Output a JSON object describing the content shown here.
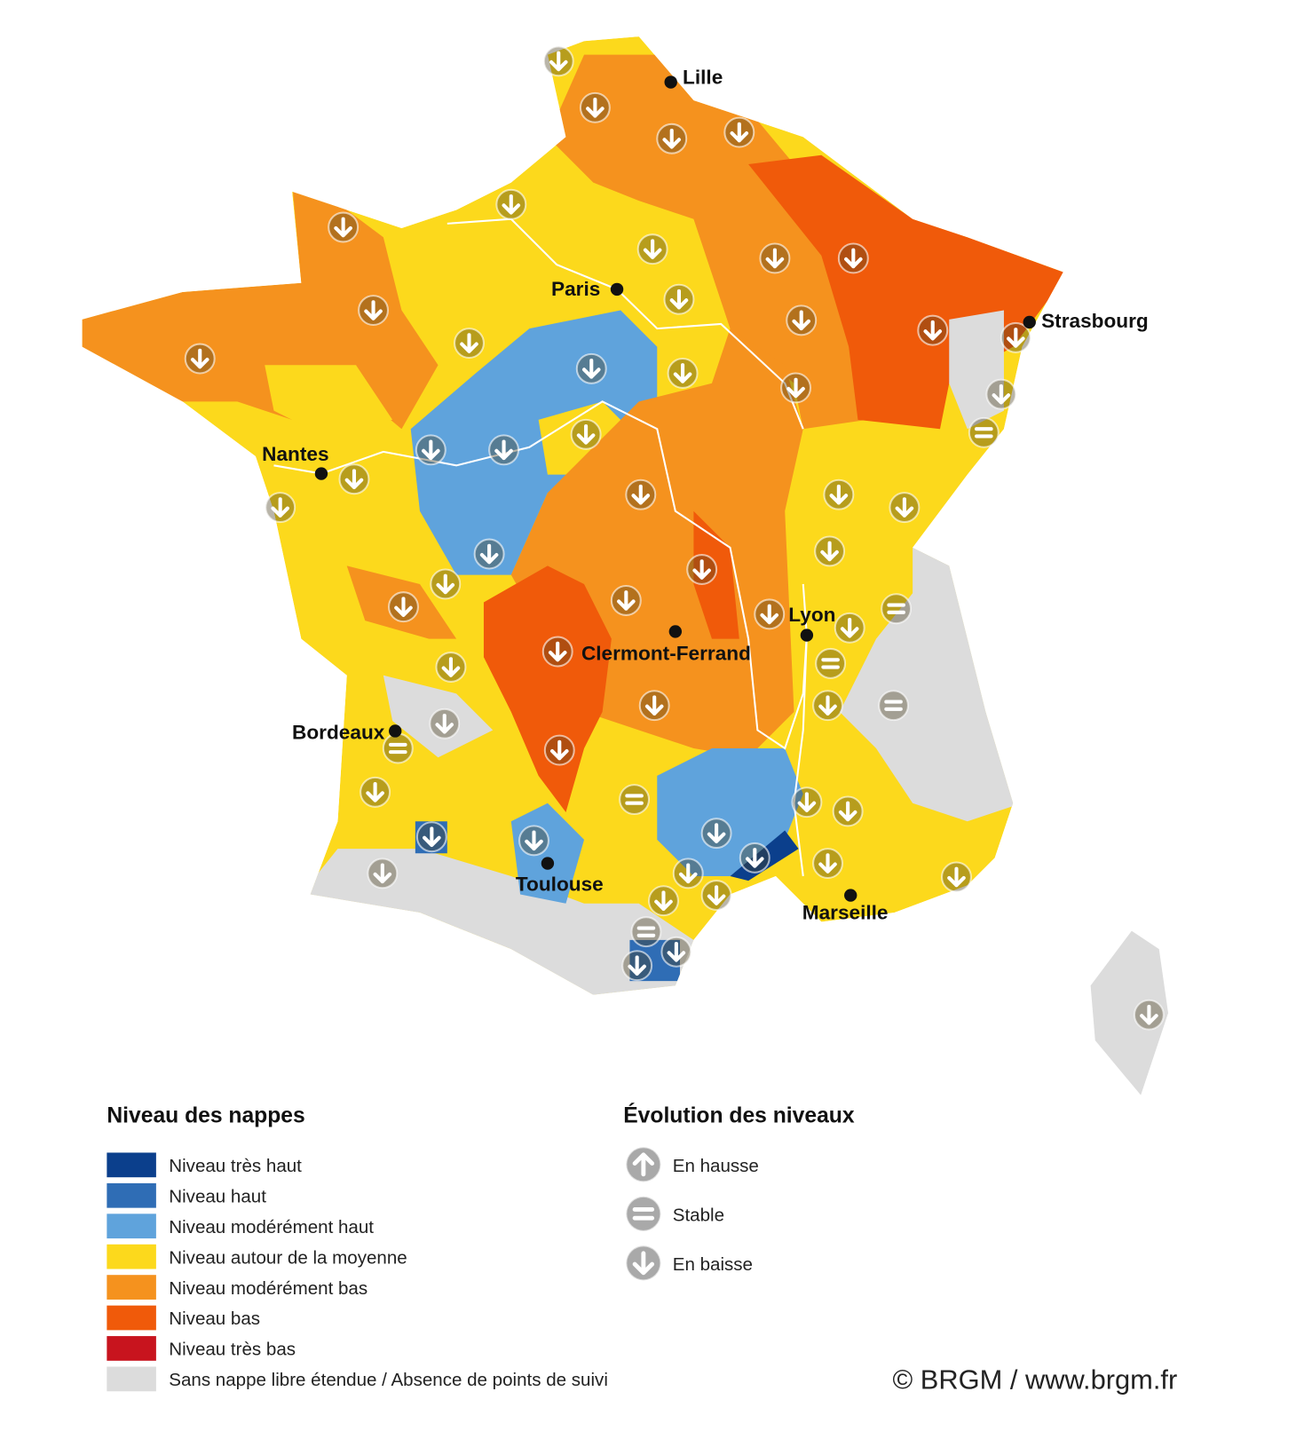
{
  "cities": [
    {
      "name": "Lille"
    },
    {
      "name": "Paris"
    },
    {
      "name": "Strasbourg"
    },
    {
      "name": "Nantes"
    },
    {
      "name": "Clermont-Ferrand"
    },
    {
      "name": "Lyon"
    },
    {
      "name": "Bordeaux"
    },
    {
      "name": "Toulouse"
    },
    {
      "name": "Marseille"
    }
  ],
  "legend_levels": {
    "title": "Niveau des nappes",
    "items": [
      {
        "label": "Niveau très haut",
        "color": "#0b3f8c"
      },
      {
        "label": "Niveau haut",
        "color": "#2f6db5"
      },
      {
        "label": "Niveau modérément haut",
        "color": "#5fa3dc"
      },
      {
        "label": "Niveau autour de la moyenne",
        "color": "#fcd91c"
      },
      {
        "label": "Niveau modérément bas",
        "color": "#f5921e"
      },
      {
        "label": "Niveau bas",
        "color": "#f05a0a"
      },
      {
        "label": "Niveau très bas",
        "color": "#c8141e"
      },
      {
        "label": "Sans nappe libre étendue / Absence de points de suivi",
        "color": "#dcdcdc"
      }
    ]
  },
  "legend_evolution": {
    "title": "Évolution des niveaux",
    "items": [
      {
        "label": "En hausse"
      },
      {
        "label": "Stable"
      },
      {
        "label": "En baisse"
      }
    ]
  },
  "credit": "© BRGM / www.brgm.fr"
}
